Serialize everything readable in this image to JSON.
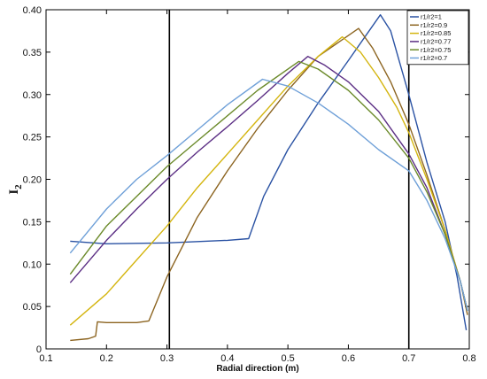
{
  "chart_data": {
    "type": "line",
    "title": "",
    "xlabel": "Radial direction (m)",
    "ylabel_main": "I",
    "ylabel_sub": "2",
    "xlim": [
      0.1,
      0.8
    ],
    "ylim": [
      0,
      0.4
    ],
    "xticks": [
      0.1,
      0.2,
      0.3,
      0.4,
      0.5,
      0.6,
      0.7,
      0.8
    ],
    "yticks": [
      0,
      0.05,
      0.1,
      0.15,
      0.2,
      0.25,
      0.3,
      0.35,
      0.4
    ],
    "xtick_labels": [
      "0.1",
      "0.2",
      "0.3",
      "0.4",
      "0.5",
      "0.6",
      "0.7",
      "0.8"
    ],
    "ytick_labels": [
      "0",
      "0.05",
      "0.10",
      "0.15",
      "0.20",
      "0.25",
      "0.30",
      "0.35",
      "0.40"
    ],
    "grid": false,
    "legend_position": "top-right",
    "vertical_lines": [
      0.304,
      0.7
    ],
    "series": [
      {
        "name": "r1/r2=1",
        "color": "#2a52a3",
        "points": [
          [
            0.14,
            0.127
          ],
          [
            0.2,
            0.124
          ],
          [
            0.3,
            0.125
          ],
          [
            0.4,
            0.128
          ],
          [
            0.435,
            0.13
          ],
          [
            0.445,
            0.15
          ],
          [
            0.46,
            0.18
          ],
          [
            0.5,
            0.235
          ],
          [
            0.55,
            0.29
          ],
          [
            0.6,
            0.34
          ],
          [
            0.653,
            0.394
          ],
          [
            0.67,
            0.375
          ],
          [
            0.7,
            0.3
          ],
          [
            0.73,
            0.22
          ],
          [
            0.76,
            0.15
          ],
          [
            0.78,
            0.085
          ],
          [
            0.795,
            0.022
          ]
        ]
      },
      {
        "name": "r1/r2=0.9",
        "color": "#8c6420",
        "points": [
          [
            0.14,
            0.01
          ],
          [
            0.17,
            0.012
          ],
          [
            0.182,
            0.015
          ],
          [
            0.185,
            0.032
          ],
          [
            0.2,
            0.031
          ],
          [
            0.25,
            0.031
          ],
          [
            0.27,
            0.033
          ],
          [
            0.3,
            0.085
          ],
          [
            0.35,
            0.155
          ],
          [
            0.4,
            0.21
          ],
          [
            0.45,
            0.26
          ],
          [
            0.5,
            0.305
          ],
          [
            0.55,
            0.345
          ],
          [
            0.617,
            0.378
          ],
          [
            0.64,
            0.355
          ],
          [
            0.67,
            0.315
          ],
          [
            0.7,
            0.265
          ],
          [
            0.73,
            0.205
          ],
          [
            0.76,
            0.14
          ],
          [
            0.785,
            0.08
          ],
          [
            0.797,
            0.04
          ]
        ]
      },
      {
        "name": "r1/r2=0.85",
        "color": "#d4b50f",
        "points": [
          [
            0.14,
            0.028
          ],
          [
            0.2,
            0.065
          ],
          [
            0.25,
            0.105
          ],
          [
            0.3,
            0.145
          ],
          [
            0.35,
            0.19
          ],
          [
            0.4,
            0.23
          ],
          [
            0.45,
            0.27
          ],
          [
            0.5,
            0.31
          ],
          [
            0.55,
            0.345
          ],
          [
            0.59,
            0.368
          ],
          [
            0.62,
            0.35
          ],
          [
            0.65,
            0.32
          ],
          [
            0.68,
            0.285
          ],
          [
            0.7,
            0.255
          ],
          [
            0.73,
            0.2
          ],
          [
            0.76,
            0.14
          ],
          [
            0.785,
            0.08
          ],
          [
            0.797,
            0.045
          ]
        ]
      },
      {
        "name": "r1/r2=0.77",
        "color": "#5b2e84",
        "points": [
          [
            0.14,
            0.078
          ],
          [
            0.2,
            0.128
          ],
          [
            0.25,
            0.165
          ],
          [
            0.3,
            0.2
          ],
          [
            0.35,
            0.232
          ],
          [
            0.4,
            0.262
          ],
          [
            0.45,
            0.293
          ],
          [
            0.5,
            0.325
          ],
          [
            0.533,
            0.345
          ],
          [
            0.56,
            0.335
          ],
          [
            0.6,
            0.315
          ],
          [
            0.65,
            0.28
          ],
          [
            0.7,
            0.23
          ],
          [
            0.73,
            0.19
          ],
          [
            0.76,
            0.135
          ],
          [
            0.785,
            0.08
          ],
          [
            0.797,
            0.045
          ]
        ]
      },
      {
        "name": "r1/r2=0.75",
        "color": "#6b8a2a",
        "points": [
          [
            0.14,
            0.088
          ],
          [
            0.2,
            0.145
          ],
          [
            0.25,
            0.18
          ],
          [
            0.3,
            0.215
          ],
          [
            0.35,
            0.245
          ],
          [
            0.4,
            0.275
          ],
          [
            0.45,
            0.305
          ],
          [
            0.518,
            0.339
          ],
          [
            0.55,
            0.33
          ],
          [
            0.6,
            0.305
          ],
          [
            0.65,
            0.27
          ],
          [
            0.7,
            0.225
          ],
          [
            0.73,
            0.185
          ],
          [
            0.76,
            0.135
          ],
          [
            0.785,
            0.08
          ],
          [
            0.797,
            0.045
          ]
        ]
      },
      {
        "name": "r1/r2=0.7",
        "color": "#6fa0d8",
        "points": [
          [
            0.14,
            0.113
          ],
          [
            0.2,
            0.165
          ],
          [
            0.25,
            0.2
          ],
          [
            0.3,
            0.228
          ],
          [
            0.35,
            0.258
          ],
          [
            0.4,
            0.288
          ],
          [
            0.458,
            0.318
          ],
          [
            0.5,
            0.31
          ],
          [
            0.55,
            0.29
          ],
          [
            0.6,
            0.265
          ],
          [
            0.65,
            0.235
          ],
          [
            0.7,
            0.21
          ],
          [
            0.73,
            0.175
          ],
          [
            0.76,
            0.13
          ],
          [
            0.785,
            0.08
          ],
          [
            0.797,
            0.045
          ]
        ]
      }
    ]
  }
}
